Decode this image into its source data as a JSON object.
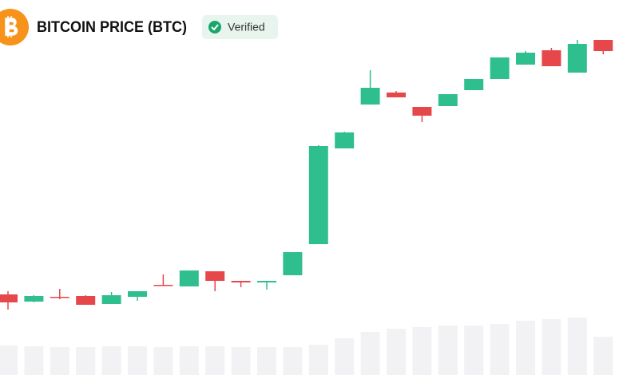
{
  "header": {
    "title": "BITCOIN PRICE (BTC)",
    "badge": "Verified"
  },
  "chart_data": {
    "type": "candlestick",
    "open": [
      101,
      92,
      98,
      99,
      89,
      98,
      113,
      111,
      130,
      118,
      116,
      125,
      164,
      284,
      339,
      354,
      336,
      337,
      357,
      371,
      389,
      407,
      379,
      420
    ],
    "high": [
      105,
      100,
      108,
      100,
      104,
      105,
      126,
      131,
      130,
      118,
      118,
      154,
      288,
      305,
      382,
      356,
      336,
      352,
      371,
      398,
      406,
      410,
      420,
      420
    ],
    "low": [
      82,
      91,
      95,
      88,
      89,
      93,
      112,
      111,
      105,
      110,
      107,
      125,
      164,
      284,
      339,
      348,
      317,
      337,
      357,
      371,
      389,
      387,
      379,
      402
    ],
    "close": [
      91,
      99,
      97,
      88,
      100,
      105,
      112,
      131,
      118,
      116,
      118,
      154,
      287,
      304,
      360,
      348,
      325,
      352,
      371,
      398,
      404,
      387,
      415,
      406
    ],
    "volume": [
      37,
      36,
      35,
      35,
      36,
      36,
      35,
      36,
      36,
      35,
      35,
      35,
      38,
      46,
      54,
      58,
      60,
      62,
      62,
      64,
      68,
      70,
      72,
      48
    ],
    "up_color": "#2fbf8f",
    "down_color": "#e5474b",
    "volume_color": "#f2f2f4",
    "ylim": [
      0,
      470
    ]
  }
}
